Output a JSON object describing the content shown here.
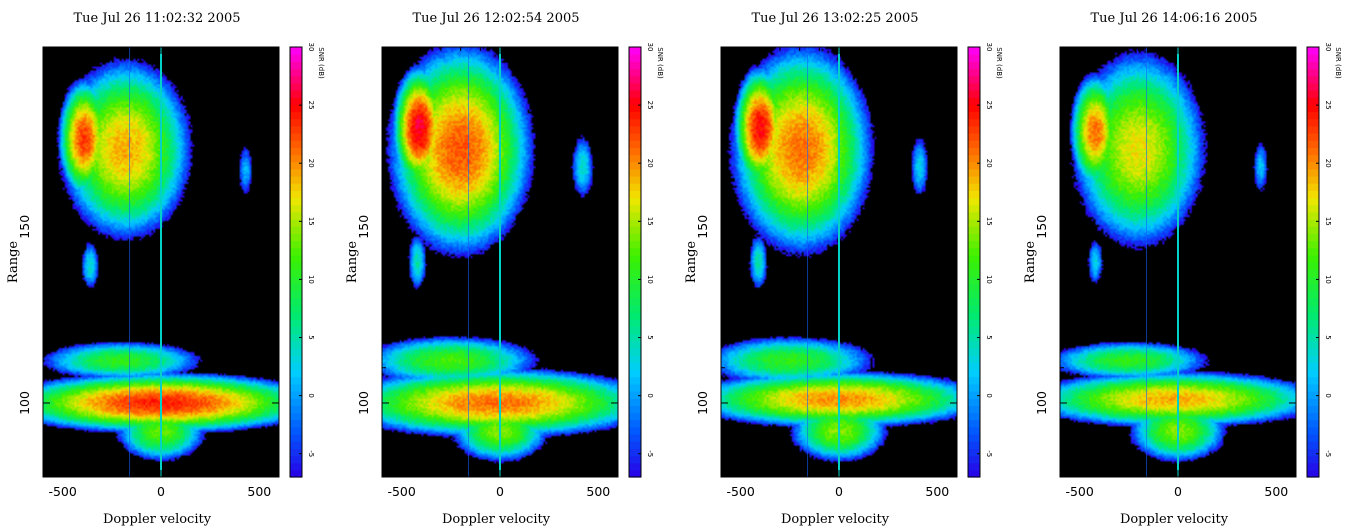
{
  "chart_data": [
    {
      "type": "heatmap",
      "title": "Tue Jul 26 11:02:32 2005",
      "xlabel": "Doppler velocity",
      "ylabel": "Range",
      "xlim": [
        -600,
        600
      ],
      "ylim": [
        79,
        201
      ],
      "xticks": [
        "-500",
        "0",
        "500"
      ],
      "yticks": [
        "100",
        "150"
      ],
      "colorbar": {
        "label": "SNR (dB)",
        "range": [
          -7,
          30
        ],
        "ticks": [
          "-5",
          "0",
          "5",
          "10",
          "15",
          "20",
          "25",
          "30"
        ]
      },
      "features": [
        {
          "name": "upper-cloud",
          "v": -180,
          "r": 172,
          "sv": 210,
          "sr": 16,
          "peak": 19,
          "core_v": -390,
          "core_r": 175
        },
        {
          "name": "blob-left",
          "v": -360,
          "r": 139,
          "sv": 40,
          "sr": 6,
          "peak": 4
        },
        {
          "name": "blob-right",
          "v": 430,
          "r": 166,
          "sv": 35,
          "sr": 7,
          "peak": 1
        },
        {
          "name": "band-upper",
          "v": -200,
          "r": 112,
          "sv": 300,
          "sr": 4,
          "peak": 11
        },
        {
          "name": "band-lower",
          "v": 0,
          "r": 100,
          "sv": 480,
          "sr": 5,
          "peak": 24
        },
        {
          "name": "funnel",
          "v": 0,
          "r": 92,
          "sv": 160,
          "sr": 6,
          "peak": 13
        }
      ]
    },
    {
      "type": "heatmap",
      "title": "Tue Jul 26 12:02:54 2005",
      "xlabel": "Doppler velocity",
      "ylabel": "Range",
      "xlim": [
        -600,
        600
      ],
      "ylim": [
        79,
        201
      ],
      "xticks": [
        "-500",
        "0",
        "500"
      ],
      "yticks": [
        "100",
        "150"
      ],
      "colorbar": {
        "label": "SNR (dB)",
        "range": [
          -7,
          30
        ],
        "ticks": [
          "-5",
          "0",
          "5",
          "10",
          "15",
          "20",
          "25",
          "30"
        ]
      },
      "features": [
        {
          "name": "upper-cloud",
          "v": -200,
          "r": 172,
          "sv": 220,
          "sr": 18,
          "peak": 22,
          "core_v": -410,
          "core_r": 178
        },
        {
          "name": "blob-left",
          "v": -420,
          "r": 140,
          "sv": 40,
          "sr": 7,
          "peak": 5
        },
        {
          "name": "blob-right",
          "v": 420,
          "r": 167,
          "sv": 50,
          "sr": 8,
          "peak": 4
        },
        {
          "name": "band-upper",
          "v": -250,
          "r": 112,
          "sv": 320,
          "sr": 5,
          "peak": 12
        },
        {
          "name": "band-lower",
          "v": -20,
          "r": 100,
          "sv": 500,
          "sr": 6,
          "peak": 21
        },
        {
          "name": "funnel",
          "v": 0,
          "r": 92,
          "sv": 170,
          "sr": 6,
          "peak": 14
        }
      ]
    },
    {
      "type": "heatmap",
      "title": "Tue Jul 26 13:02:25 2005",
      "xlabel": "Doppler velocity",
      "ylabel": "Range",
      "xlim": [
        -600,
        600
      ],
      "ylim": [
        79,
        201
      ],
      "xticks": [
        "-500",
        "0",
        "500"
      ],
      "yticks": [
        "100",
        "150"
      ],
      "colorbar": {
        "label": "SNR (dB)",
        "range": [
          -7,
          30
        ],
        "ticks": [
          "-5",
          "0",
          "5",
          "10",
          "15",
          "20",
          "25",
          "30"
        ]
      },
      "features": [
        {
          "name": "upper-cloud",
          "v": -190,
          "r": 172,
          "sv": 220,
          "sr": 18,
          "peak": 21,
          "core_v": -400,
          "core_r": 178
        },
        {
          "name": "blob-left",
          "v": -410,
          "r": 140,
          "sv": 40,
          "sr": 7,
          "peak": 5
        },
        {
          "name": "blob-right",
          "v": 410,
          "r": 167,
          "sv": 40,
          "sr": 8,
          "peak": 3
        },
        {
          "name": "band-upper",
          "v": -250,
          "r": 112,
          "sv": 320,
          "sr": 5,
          "peak": 11
        },
        {
          "name": "band-lower",
          "v": -10,
          "r": 101,
          "sv": 480,
          "sr": 5,
          "peak": 20
        },
        {
          "name": "funnel",
          "v": 0,
          "r": 92,
          "sv": 170,
          "sr": 6,
          "peak": 14
        }
      ]
    },
    {
      "type": "heatmap",
      "title": "Tue Jul 26 14:06:16 2005",
      "xlabel": "Doppler velocity",
      "ylabel": "Range",
      "xlim": [
        -600,
        600
      ],
      "ylim": [
        79,
        201
      ],
      "xticks": [
        "-500",
        "0",
        "500"
      ],
      "yticks": [
        "100",
        "150"
      ],
      "colorbar": {
        "label": "SNR (dB)",
        "range": [
          -7,
          30
        ],
        "ticks": [
          "-5",
          "0",
          "5",
          "10",
          "15",
          "20",
          "25",
          "30"
        ]
      },
      "features": [
        {
          "name": "upper-cloud",
          "v": -200,
          "r": 172,
          "sv": 220,
          "sr": 18,
          "peak": 17,
          "core_v": -420,
          "core_r": 177
        },
        {
          "name": "blob-left",
          "v": -420,
          "r": 140,
          "sv": 35,
          "sr": 6,
          "peak": 3
        },
        {
          "name": "blob-right",
          "v": 420,
          "r": 167,
          "sv": 35,
          "sr": 7,
          "peak": 2
        },
        {
          "name": "band-upper",
          "v": -250,
          "r": 112,
          "sv": 300,
          "sr": 4,
          "peak": 11
        },
        {
          "name": "band-lower",
          "v": -20,
          "r": 101,
          "sv": 480,
          "sr": 5,
          "peak": 19
        },
        {
          "name": "funnel",
          "v": 0,
          "r": 92,
          "sv": 170,
          "sr": 6,
          "peak": 14
        }
      ]
    }
  ]
}
